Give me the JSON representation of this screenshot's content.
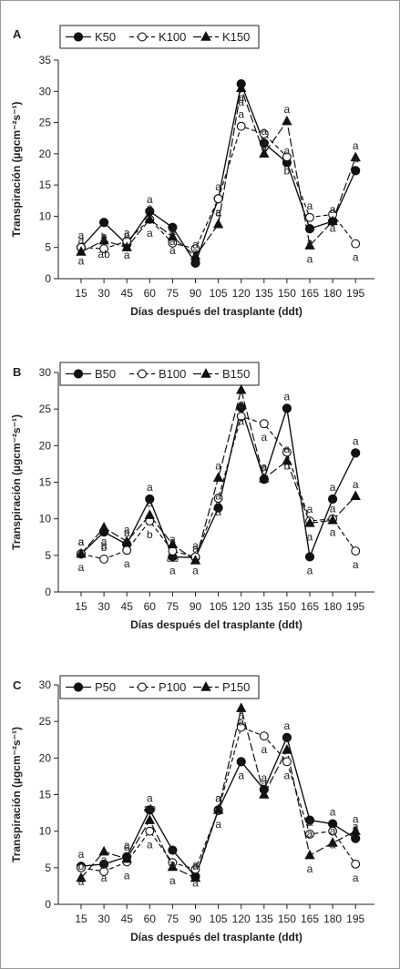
{
  "chart_data": [
    {
      "type": "line",
      "panel_label": "A",
      "x": [
        "15",
        "30",
        "45",
        "60",
        "75",
        "90",
        "105",
        "120",
        "135",
        "150",
        "165",
        "180",
        "195"
      ],
      "xlabel": "Días después del trasplante (ddt)",
      "ylabel": "Transpiración (µgcm⁻²s⁻¹)",
      "ylim": [
        0,
        35
      ],
      "yticks": [
        "0",
        "5",
        "10",
        "15",
        "20",
        "25",
        "30",
        "35"
      ],
      "legend_position": "top-left",
      "series": [
        {
          "name": "K50",
          "marker": "filled-circle",
          "line": "solid",
          "values": [
            5.0,
            9.0,
            5.5,
            10.8,
            8.2,
            2.5,
            12.8,
            31.2,
            21.7,
            18.6,
            8.0,
            9.2,
            17.3
          ],
          "letters": [
            "a",
            "a",
            "a",
            "a",
            "a",
            "a",
            "a",
            "a",
            "a",
            "a",
            "a",
            "a",
            "a"
          ]
        },
        {
          "name": "K100",
          "marker": "open-circle",
          "line": "dashed",
          "values": [
            5.0,
            4.8,
            6.0,
            9.5,
            5.7,
            4.8,
            12.8,
            24.4,
            23.2,
            19.5,
            9.8,
            10.3,
            5.6
          ],
          "letters": [
            "a",
            "b",
            "a",
            "a",
            "a",
            "a",
            "a",
            "a",
            "a",
            "b",
            "a",
            "a",
            "a"
          ]
        },
        {
          "name": "K150",
          "marker": "filled-triangle",
          "line": "long-dash",
          "values": [
            4.3,
            6.1,
            5.0,
            9.5,
            6.7,
            3.6,
            8.7,
            30.5,
            20.0,
            25.2,
            5.3,
            9.2,
            19.4
          ],
          "letters": [
            "a",
            "ab",
            "a",
            "a",
            "a",
            "a",
            "a",
            "a",
            "a",
            "a",
            "a",
            "a",
            "a"
          ]
        }
      ]
    },
    {
      "type": "line",
      "panel_label": "B",
      "x": [
        "15",
        "30",
        "45",
        "60",
        "75",
        "90",
        "105",
        "120",
        "135",
        "150",
        "165",
        "180",
        "195"
      ],
      "xlabel": "Días después del trasplante (ddt)",
      "ylabel": "Transpiración (µgcm⁻²s⁻¹)",
      "ylim": [
        0,
        30
      ],
      "yticks": [
        "0",
        "5",
        "10",
        "15",
        "20",
        "25",
        "30"
      ],
      "legend_position": "top-left",
      "series": [
        {
          "name": "B50",
          "marker": "filled-circle",
          "line": "solid",
          "values": [
            5.2,
            8.2,
            6.5,
            12.7,
            4.8,
            4.7,
            11.5,
            25.2,
            15.4,
            25.1,
            4.8,
            12.7,
            19.0
          ],
          "letters": [
            "a",
            "a",
            "a",
            "a",
            "a",
            "a",
            "a",
            "a",
            "a",
            "a",
            "a",
            "a",
            "a"
          ]
        },
        {
          "name": "B100",
          "marker": "open-circle",
          "line": "dashed",
          "values": [
            5.2,
            4.5,
            5.7,
            9.7,
            5.6,
            4.8,
            12.8,
            24.0,
            23.0,
            19.1,
            9.7,
            10.0,
            5.6
          ],
          "letters": [
            "a",
            "b",
            "a",
            "b",
            "a",
            "a",
            "a",
            "a",
            "a",
            "b",
            "a",
            "a",
            "a"
          ]
        },
        {
          "name": "B150",
          "marker": "filled-triangle",
          "line": "long-dash",
          "values": [
            5.2,
            8.8,
            6.9,
            10.5,
            6.5,
            4.3,
            15.6,
            27.6,
            15.5,
            17.9,
            9.4,
            9.8,
            13.1
          ],
          "letters": [
            "a",
            "a",
            "a",
            "a",
            "ab",
            "a",
            "a",
            "a",
            "a",
            "a",
            "a",
            "a",
            "a"
          ]
        }
      ]
    },
    {
      "type": "line",
      "panel_label": "C",
      "x": [
        "15",
        "30",
        "45",
        "60",
        "75",
        "90",
        "105",
        "120",
        "135",
        "150",
        "165",
        "180",
        "195"
      ],
      "xlabel": "Días después del trasplante (ddt)",
      "ylabel": "Transpiración (µgcm⁻²s⁻¹)",
      "ylim": [
        0,
        30
      ],
      "yticks": [
        "0",
        "5",
        "10",
        "15",
        "20",
        "25",
        "30"
      ],
      "legend_position": "top-left",
      "series": [
        {
          "name": "P50",
          "marker": "filled-circle",
          "line": "solid",
          "values": [
            5.2,
            5.5,
            6.5,
            12.9,
            7.4,
            3.8,
            12.9,
            19.5,
            15.7,
            22.8,
            11.5,
            11.0,
            9.0
          ],
          "letters": [
            "a",
            "a",
            "a",
            "a",
            "a",
            "a",
            "a",
            "a",
            "a",
            "a",
            "a",
            "a",
            "a"
          ]
        },
        {
          "name": "P100",
          "marker": "open-circle",
          "line": "dashed",
          "values": [
            5.0,
            4.5,
            5.8,
            10.0,
            5.7,
            4.8,
            12.8,
            24.2,
            23.0,
            19.5,
            9.6,
            10.0,
            5.5
          ],
          "letters": [
            "a",
            "a",
            "a",
            "a",
            "a",
            "a",
            "a",
            "a",
            "a",
            "a",
            "a",
            "a",
            "a"
          ]
        },
        {
          "name": "P150",
          "marker": "filled-triangle",
          "line": "long-dash",
          "values": [
            3.6,
            7.2,
            6.2,
            11.5,
            5.1,
            3.6,
            12.9,
            26.8,
            15.0,
            21.1,
            6.7,
            8.4,
            10.0
          ],
          "letters": [
            "b",
            "a",
            "a",
            "ab",
            "a",
            "a",
            "a",
            "a",
            "a",
            "a",
            "a",
            "a",
            "a"
          ]
        }
      ]
    }
  ]
}
